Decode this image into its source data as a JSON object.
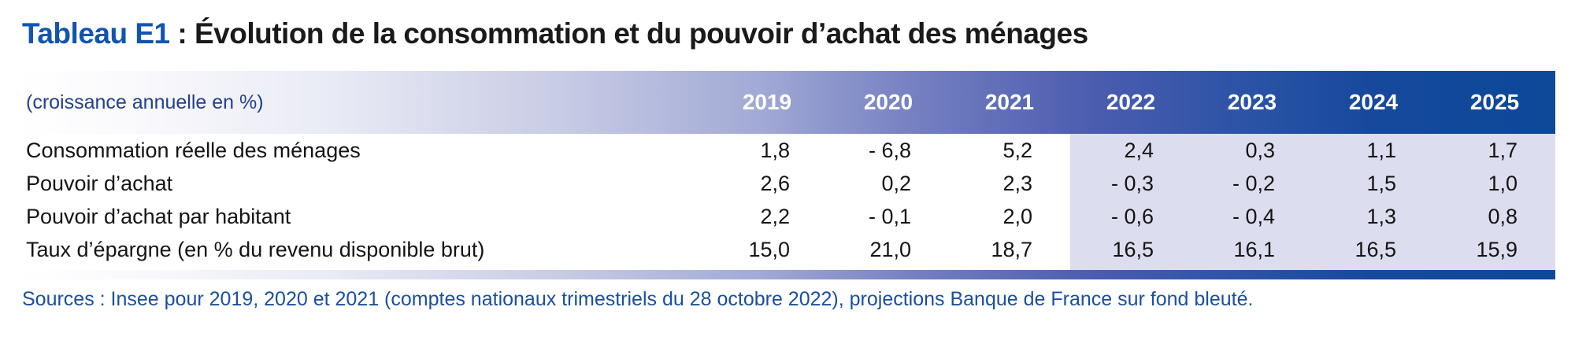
{
  "title": {
    "prefix": "Tableau E1",
    "rest": " : Évolution de la consommation et du pouvoir d’achat des ménages"
  },
  "table": {
    "unit_label": "(croissance annuelle en %)",
    "years": [
      "2019",
      "2020",
      "2021",
      "2022",
      "2023",
      "2024",
      "2025"
    ],
    "projection_start_index": 3,
    "rows": [
      {
        "label": "Consommation réelle des ménages",
        "values": [
          "1,8",
          "- 6,8",
          "5,2",
          "2,4",
          "0,3",
          "1,1",
          "1,7"
        ]
      },
      {
        "label": "Pouvoir d’achat",
        "values": [
          "2,6",
          "0,2",
          "2,3",
          "- 0,3",
          "- 0,2",
          "1,5",
          "1,0"
        ]
      },
      {
        "label": "Pouvoir d’achat par habitant",
        "values": [
          "2,2",
          "- 0,1",
          "2,0",
          "- 0,6",
          "- 0,4",
          "1,3",
          "0,8"
        ]
      },
      {
        "label": "Taux d’épargne (en % du revenu disponible brut)",
        "values": [
          "15,0",
          "21,0",
          "18,7",
          "16,5",
          "16,1",
          "16,5",
          "15,9"
        ]
      }
    ]
  },
  "source_note": "Sources : Insee pour 2019, 2020 et 2021 (comptes nationaux trimestriels du 28 octobre 2022), projections Banque de France sur fond bleuté.",
  "colors": {
    "title_accent": "#1155b1",
    "header_gradient_start": "#ffffff",
    "header_gradient_end": "#0d4899",
    "header_text": "#ffffff",
    "unit_label_text": "#23408f",
    "projection_background": "#dcddee",
    "body_text": "#141414",
    "source_text": "#1b4fa0"
  }
}
